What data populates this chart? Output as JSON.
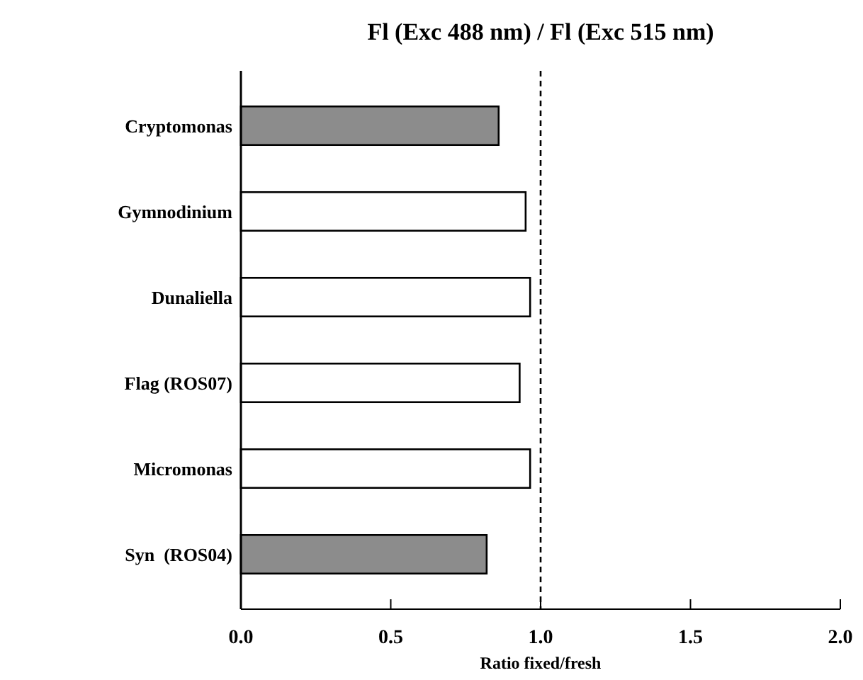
{
  "chart_data": {
    "type": "bar",
    "orientation": "horizontal",
    "title": "Fl (Exc 488 nm) / Fl (Exc 515 nm)",
    "xlabel": "Ratio fixed/fresh",
    "categories": [
      "Cryptomonas",
      "Gymnodinium",
      "Dunaliella",
      "Flag (ROS07)",
      "Micromonas",
      "Syn  (ROS04)"
    ],
    "values": [
      0.86,
      0.95,
      0.965,
      0.93,
      0.965,
      0.82
    ],
    "colors": [
      "#8c8c8c",
      "#ffffff",
      "#ffffff",
      "#ffffff",
      "#ffffff",
      "#8c8c8c"
    ],
    "xlim": [
      0,
      2
    ],
    "xticks": [
      {
        "value": 0,
        "label": "0.0"
      },
      {
        "value": 0.5,
        "label": "0.5"
      },
      {
        "value": 1,
        "label": "1.0"
      },
      {
        "value": 1.5,
        "label": "1.5"
      },
      {
        "value": 2,
        "label": "2.0"
      }
    ],
    "ref_lines": [
      {
        "axis": "x",
        "value": 1,
        "line_style": "dashed"
      }
    ],
    "grid": false
  }
}
